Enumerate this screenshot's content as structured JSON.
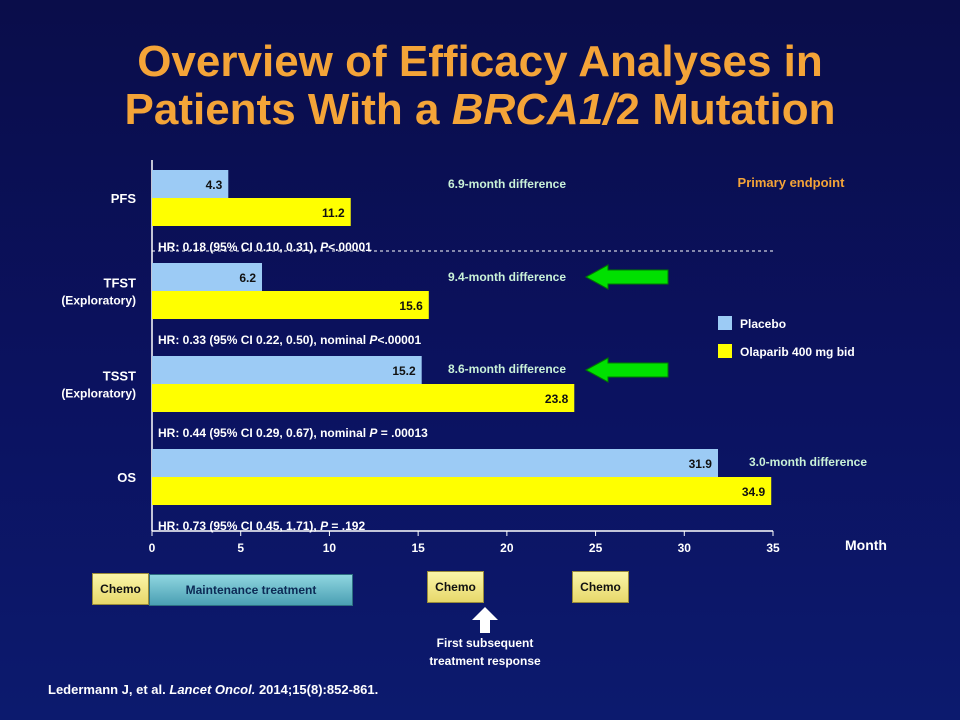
{
  "slide": {
    "title_line1": "Overview of Efficacy Analyses in",
    "title_line2_pre": "Patients With a ",
    "title_line2_italic": "BRCA1/",
    "title_line2_post": "2 Mutation",
    "citation_authors": "Ledermann J, et al. ",
    "citation_journal": "Lancet Oncol.",
    "citation_ref": " 2014;15(8):852-861."
  },
  "chart_data": {
    "type": "bar",
    "orientation": "horizontal",
    "categories": [
      "PFS",
      "TFST (Exploratory)",
      "TSST (Exploratory)",
      "OS"
    ],
    "category_lines": [
      [
        "PFS"
      ],
      [
        "TFST",
        "(Exploratory)"
      ],
      [
        "TSST",
        "(Exploratory)"
      ],
      [
        "OS"
      ]
    ],
    "series": [
      {
        "name": "Placebo",
        "color": "#9ccbf5",
        "values": [
          4.3,
          6.2,
          15.2,
          31.9
        ],
        "labels": [
          "4.3",
          "6.2",
          "15.2",
          "31.9"
        ]
      },
      {
        "name": "Olaparib 400 mg bid",
        "color": "#ffff00",
        "values": [
          11.2,
          15.6,
          23.8,
          34.9
        ],
        "labels": [
          "11.2",
          "15.6",
          "23.8",
          "34.9"
        ]
      }
    ],
    "differences": [
      "6.9-month difference",
      "9.4-month difference",
      "8.6-month difference",
      "3.0-month difference"
    ],
    "hazard_ratios": [
      {
        "pre": "HR: 0.18 (95% CI 0.10, 0.31), ",
        "p": "P",
        "post": "<.00001"
      },
      {
        "pre": "HR: 0.33 (95% CI 0.22, 0.50), nominal ",
        "p": "P",
        "post": "<.00001"
      },
      {
        "pre": "HR: 0.44 (95% CI 0.29, 0.67), nominal ",
        "p": "P",
        "post": " = .00013"
      },
      {
        "pre": "HR: 0.73 (95% CI 0.45, 1.71), ",
        "p": "P",
        "post": " = .192"
      }
    ],
    "primary_endpoint_label": "Primary endpoint",
    "xlabel": "Month",
    "xlim": [
      0,
      35
    ],
    "xticks": [
      0,
      5,
      10,
      15,
      20,
      25,
      30,
      35
    ],
    "arrow_color": "#00e000",
    "arrow_rows": [
      1,
      2
    ],
    "legend": [
      "Placebo",
      "Olaparib 400 mg bid"
    ],
    "legend_position": "right"
  },
  "timeline": {
    "chemo1": "Chemo",
    "maintenance": "Maintenance treatment",
    "chemo2": "Chemo",
    "chemo3": "Chemo",
    "first_subsequent_line1": "First subsequent",
    "first_subsequent_line2": "treatment response"
  }
}
